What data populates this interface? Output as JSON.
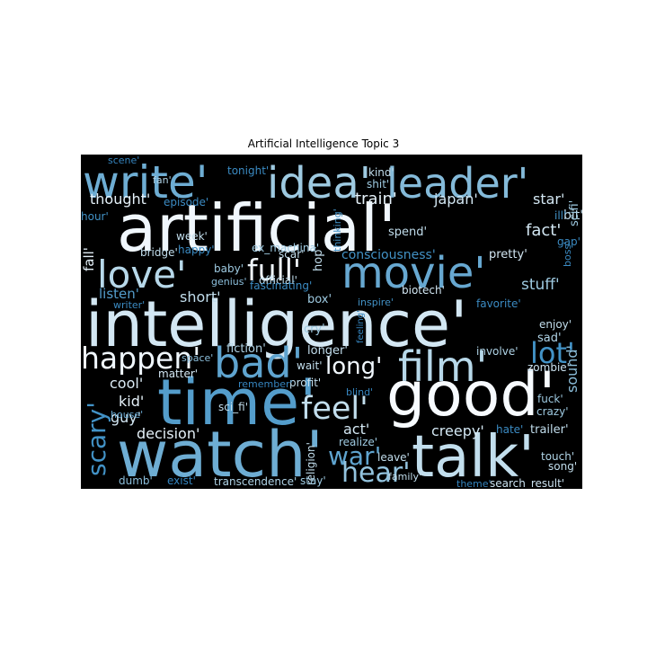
{
  "chart_data": {
    "type": "wordcloud",
    "title": "Artificial Intelligence Topic 3",
    "colormap": "Blues",
    "background": "#000000",
    "words": [
      {
        "text": "write'",
        "w": 0.62
      },
      {
        "text": "idea'",
        "w": 0.75
      },
      {
        "text": "leader'",
        "w": 0.68
      },
      {
        "text": "artificial'",
        "w": 0.98
      },
      {
        "text": "love'",
        "w": 0.82
      },
      {
        "text": "full'",
        "w": 0.98
      },
      {
        "text": "movie'",
        "w": 0.6
      },
      {
        "text": "intelligence'",
        "w": 0.9
      },
      {
        "text": "happen'",
        "w": 0.98
      },
      {
        "text": "bad'",
        "w": 0.58
      },
      {
        "text": "long'",
        "w": 0.98
      },
      {
        "text": "film'",
        "w": 0.82
      },
      {
        "text": "lot'",
        "w": 0.5
      },
      {
        "text": "time'",
        "w": 0.55
      },
      {
        "text": "good'",
        "w": 1.0
      },
      {
        "text": "feel'",
        "w": 0.85
      },
      {
        "text": "watch'",
        "w": 0.62
      },
      {
        "text": "talk'",
        "w": 0.85
      },
      {
        "text": "war'",
        "w": 0.58
      },
      {
        "text": "hear'",
        "w": 0.72
      },
      {
        "text": "scary'",
        "w": 0.5
      },
      {
        "text": "thought'",
        "w": 0.95
      },
      {
        "text": "train'",
        "w": 0.95
      },
      {
        "text": "japan'",
        "w": 0.9
      },
      {
        "text": "star'",
        "w": 0.9
      },
      {
        "text": "fact'",
        "w": 0.9
      },
      {
        "text": "stuff'",
        "w": 0.75
      },
      {
        "text": "short'",
        "w": 0.85
      },
      {
        "text": "listen'",
        "w": 0.55
      },
      {
        "text": "consciousness'",
        "w": 0.5
      },
      {
        "text": "fall'",
        "w": 0.95
      },
      {
        "text": "cool'",
        "w": 0.92
      },
      {
        "text": "kid'",
        "w": 0.95
      },
      {
        "text": "guy'",
        "w": 0.9
      },
      {
        "text": "decision'",
        "w": 0.95
      },
      {
        "text": "creepy'",
        "w": 0.9
      },
      {
        "text": "sound'",
        "w": 0.7
      },
      {
        "text": "fiction'",
        "w": 0.8
      },
      {
        "text": "longer'",
        "w": 0.85
      },
      {
        "text": "matter'",
        "w": 0.9
      },
      {
        "text": "wait'",
        "w": 0.85
      },
      {
        "text": "profit'",
        "w": 0.85
      },
      {
        "text": "zombie'",
        "w": 0.88
      },
      {
        "text": "sad'",
        "w": 0.8
      },
      {
        "text": "enjoy'",
        "w": 0.85
      },
      {
        "text": "involve'",
        "w": 0.8
      },
      {
        "text": "act'",
        "w": 0.9
      },
      {
        "text": "realize'",
        "w": 0.75
      },
      {
        "text": "religion'",
        "w": 0.85
      },
      {
        "text": "leave'",
        "w": 0.85
      },
      {
        "text": "family'",
        "w": 0.85
      },
      {
        "text": "hate'",
        "w": 0.45
      },
      {
        "text": "trailer'",
        "w": 0.85
      },
      {
        "text": "fuck'",
        "w": 0.75
      },
      {
        "text": "crazy'",
        "w": 0.75
      },
      {
        "text": "touch'",
        "w": 0.8
      },
      {
        "text": "song'",
        "w": 0.85
      },
      {
        "text": "theme'",
        "w": 0.4
      },
      {
        "text": "search_result'",
        "w": 0.88
      },
      {
        "text": "transcendence'",
        "w": 0.8
      },
      {
        "text": "stay'",
        "w": 0.75
      },
      {
        "text": "exist'",
        "w": 0.4
      },
      {
        "text": "dumb'",
        "w": 0.7
      },
      {
        "text": "sci_fi'",
        "w": 0.85
      },
      {
        "text": "house'",
        "w": 0.6
      },
      {
        "text": "remember'",
        "w": 0.4
      },
      {
        "text": "space'",
        "w": 0.7
      },
      {
        "text": "cry'",
        "w": 0.75
      },
      {
        "text": "blind'",
        "w": 0.4
      },
      {
        "text": "feeling'",
        "w": 0.4
      },
      {
        "text": "box'",
        "w": 0.75
      },
      {
        "text": "inspire'",
        "w": 0.5
      },
      {
        "text": "biotech'",
        "w": 0.9
      },
      {
        "text": "favorite'",
        "w": 0.45
      },
      {
        "text": "pretty'",
        "w": 0.9
      },
      {
        "text": "spend'",
        "w": 0.85
      },
      {
        "text": "official'",
        "w": 0.85
      },
      {
        "text": "hop'",
        "w": 0.85
      },
      {
        "text": "thinking'",
        "w": 0.5
      },
      {
        "text": "scar'",
        "w": 0.85
      },
      {
        "text": "ex_machina'",
        "w": 0.75
      },
      {
        "text": "week'",
        "w": 0.85
      },
      {
        "text": "happy'",
        "w": 0.45
      },
      {
        "text": "baby'",
        "w": 0.75
      },
      {
        "text": "genius'",
        "w": 0.7
      },
      {
        "text": "fascinating'",
        "w": 0.45
      },
      {
        "text": "bridge'",
        "w": 0.85
      },
      {
        "text": "writer'",
        "w": 0.45
      },
      {
        "text": "hour'",
        "w": 0.5
      },
      {
        "text": "episode'",
        "w": 0.45
      },
      {
        "text": "fan'",
        "w": 0.8
      },
      {
        "text": "scene'",
        "w": 0.4
      },
      {
        "text": "tonight'",
        "w": 0.45
      },
      {
        "text": "kind'",
        "w": 0.85
      },
      {
        "text": "shit'",
        "w": 0.75
      },
      {
        "text": "bit'",
        "w": 0.85
      },
      {
        "text": "scifi'",
        "w": 0.75
      },
      {
        "text": "ill'",
        "w": 0.5
      },
      {
        "text": "gap'",
        "w": 0.45
      },
      {
        "text": "boss'",
        "w": 0.45
      }
    ]
  }
}
